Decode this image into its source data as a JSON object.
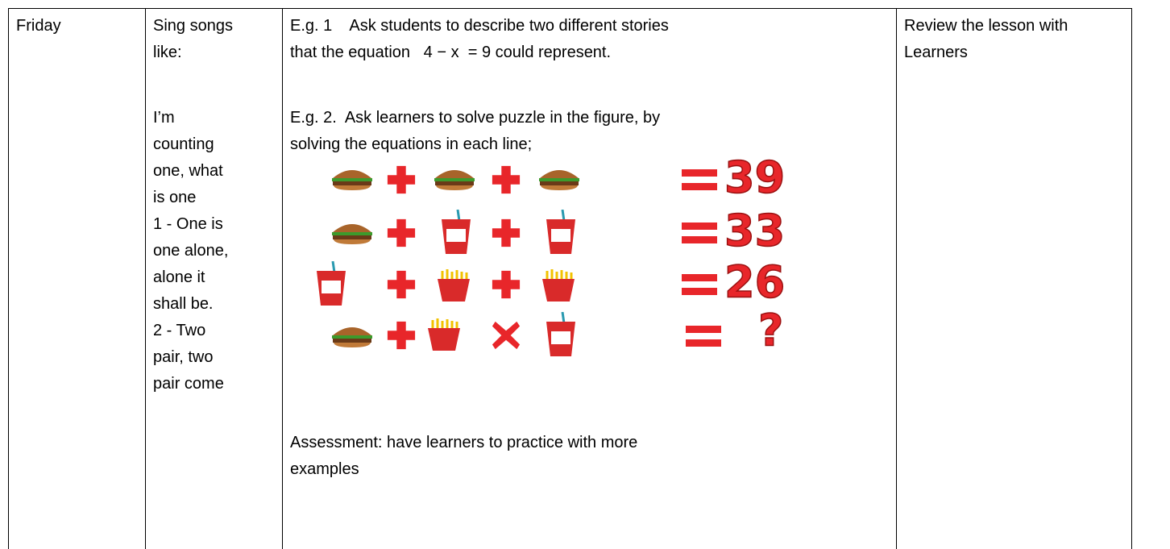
{
  "table": {
    "rows": [
      [
        {
          "lines": [
            "Friday"
          ]
        },
        {
          "paragraphs": [
            [
              "Sing songs",
              "like:"
            ],
            [
              "I’m",
              "counting",
              "one, what",
              "is one",
              "1 - One is",
              "one alone,",
              "alone it",
              "shall be.",
              "2 - Two",
              "pair, two",
              "pair come"
            ]
          ]
        },
        {
          "paragraphs": [
            [
              "E.g. 1    Ask students to describe two different stories",
              "that the equation   4 − x  = 9 could represent."
            ],
            [
              "E.g. 2.  Ask learners to solve puzzle in the figure, by",
              "solving the equations in each line;"
            ]
          ],
          "puzzle": {
            "results": [
              "39",
              "33",
              "26",
              "?"
            ]
          },
          "assessment": [
            "Assessment: have learners to practice with more",
            "examples"
          ]
        },
        {
          "lines": [
            "Review the lesson with",
            "Learners"
          ]
        }
      ]
    ]
  }
}
